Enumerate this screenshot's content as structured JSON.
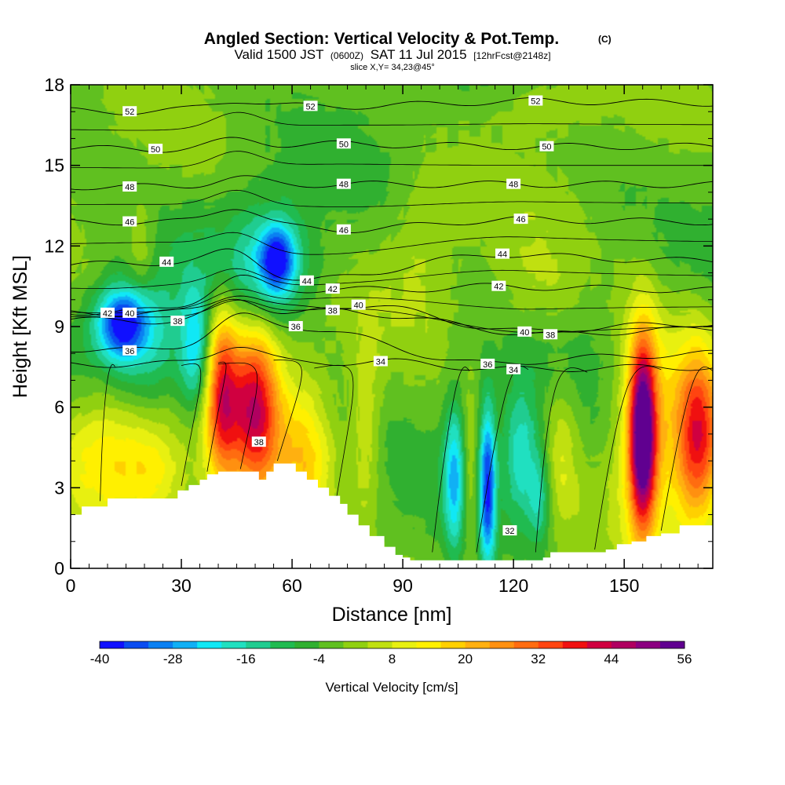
{
  "chart_data": {
    "type": "heatmap",
    "title": {
      "main": "Angled Section: Vertical Velocity & Pot.Temp.",
      "main_suffix": "(C)",
      "sub_a": "Valid 1500 JST",
      "sub_b": "(0600Z)",
      "sub_c": "SAT 11 Jul 2015",
      "sub_d": "[12hrFcst@2148z]",
      "slice": "slice X,Y= 34,23@45°"
    },
    "xlabel": "Distance [nm]",
    "ylabel": "Height [Kft MSL]",
    "xlim": [
      0,
      174
    ],
    "ylim": [
      0,
      18
    ],
    "x_ticks": [
      "0",
      "30",
      "60",
      "90",
      "120",
      "150"
    ],
    "x_tick_values": [
      0,
      30,
      60,
      90,
      120,
      150
    ],
    "y_ticks": [
      "0",
      "3",
      "6",
      "9",
      "12",
      "15",
      "18"
    ],
    "y_tick_values": [
      0,
      3,
      6,
      9,
      12,
      15,
      18
    ],
    "colorbar": {
      "label": "Vertical Velocity [cm/s]",
      "min": -40,
      "max": 56,
      "step": 4,
      "tick_labels": [
        "-40",
        "-28",
        "-16",
        "-4",
        "8",
        "20",
        "32",
        "44",
        "56"
      ],
      "tick_values": [
        -40,
        -28,
        -16,
        -4,
        8,
        20,
        32,
        44,
        56
      ],
      "colors": [
        "#1010ff",
        "#0a4cf0",
        "#0a80f2",
        "#10b0f5",
        "#10e8f5",
        "#20e0c0",
        "#20cc90",
        "#20bb50",
        "#30b030",
        "#60c020",
        "#90d010",
        "#c0e010",
        "#e8f010",
        "#fff000",
        "#ffd000",
        "#ffb010",
        "#ff9010",
        "#ff6c10",
        "#ff4410",
        "#f01010",
        "#d00040",
        "#b00060",
        "#8c0080",
        "#600090"
      ]
    },
    "vertical_velocity_field": {
      "units": "cm/s",
      "background": -2,
      "features": [
        {
          "name": "lower-left updraft",
          "x": 10,
          "y": 4.4,
          "dx": 10,
          "dy": 1.8,
          "value": 18
        },
        {
          "name": "lower-left updraft tail",
          "x": 23,
          "y": 3.6,
          "dx": 6,
          "dy": 1.2,
          "value": 10
        },
        {
          "name": "left updraft core A",
          "x": 41,
          "y": 6.7,
          "dx": 3.2,
          "dy": 2.4,
          "value": 34
        },
        {
          "name": "left updraft core B",
          "x": 50,
          "y": 6.2,
          "dx": 4.2,
          "dy": 2.2,
          "value": 32
        },
        {
          "name": "left updraft column",
          "x": 52,
          "y": 5.4,
          "dx": 10,
          "dy": 3.2,
          "value": 12
        },
        {
          "name": "updraft over ridge",
          "x": 64,
          "y": 3.8,
          "dx": 5,
          "dy": 1.8,
          "value": 14
        },
        {
          "name": "updraft slope",
          "x": 80,
          "y": 5.0,
          "dx": 3,
          "dy": 2.5,
          "value": 10
        },
        {
          "name": "upper left downdraft",
          "x": 14,
          "y": 9.1,
          "dx": 5,
          "dy": 0.9,
          "value": -32
        },
        {
          "name": "upper left downdraft halo",
          "x": 20,
          "y": 8.4,
          "dx": 9,
          "dy": 1.8,
          "value": -14
        },
        {
          "name": "upper downdraft band",
          "x": 56,
          "y": 11.5,
          "dx": 3.5,
          "dy": 0.9,
          "value": -30
        },
        {
          "name": "upper downdraft band halo",
          "x": 52,
          "y": 11.2,
          "dx": 10,
          "dy": 1.8,
          "value": -16
        },
        {
          "name": "mid downdraft",
          "x": 34,
          "y": 8.0,
          "dx": 3,
          "dy": 1.6,
          "value": -20
        },
        {
          "name": "upper updraft",
          "x": 19,
          "y": 11.8,
          "dx": 3,
          "dy": 1.4,
          "value": 8
        },
        {
          "name": "upper updraft right",
          "x": 126,
          "y": 10.5,
          "dx": 8,
          "dy": 1.4,
          "value": 6
        },
        {
          "name": "top right updraft",
          "x": 128,
          "y": 17.2,
          "dx": 10,
          "dy": 0.9,
          "value": 6
        },
        {
          "name": "low downdraft 1",
          "x": 104,
          "y": 3.4,
          "dx": 2,
          "dy": 2.0,
          "value": -22
        },
        {
          "name": "low downdraft 2",
          "x": 113,
          "y": 3.0,
          "dx": 1.6,
          "dy": 2.2,
          "value": -34
        },
        {
          "name": "low downdraft 3",
          "x": 122,
          "y": 4.2,
          "dx": 3.5,
          "dy": 1.8,
          "value": -18
        },
        {
          "name": "low downdraft 3b",
          "x": 127,
          "y": 2.6,
          "dx": 2.2,
          "dy": 1.2,
          "value": -14
        },
        {
          "name": "low updraft 1",
          "x": 108,
          "y": 3.5,
          "dx": 1.6,
          "dy": 2.0,
          "value": 8
        },
        {
          "name": "low updraft 2",
          "x": 133,
          "y": 4.6,
          "dx": 3,
          "dy": 2.0,
          "value": 8
        },
        {
          "name": "right updraft core",
          "x": 155,
          "y": 5.0,
          "dx": 2.5,
          "dy": 2.4,
          "value": 52
        },
        {
          "name": "right updraft halo",
          "x": 155,
          "y": 5.2,
          "dx": 5,
          "dy": 3.2,
          "value": 18
        },
        {
          "name": "far right updraft",
          "x": 170,
          "y": 4.8,
          "dx": 4,
          "dy": 2.2,
          "value": 28
        },
        {
          "name": "far right updraft halo",
          "x": 168,
          "y": 4.8,
          "dx": 7,
          "dy": 3.0,
          "value": 14
        },
        {
          "name": "mid level updraft",
          "x": 95,
          "y": 12.0,
          "dx": 7,
          "dy": 2.2,
          "value": 6
        }
      ]
    },
    "terrain": {
      "units": "Kft MSL",
      "x": [
        0,
        3,
        7,
        10,
        24,
        29,
        32,
        35,
        37,
        40,
        43,
        50,
        51,
        53,
        55,
        58,
        61,
        64,
        67,
        70,
        73,
        75,
        78,
        81,
        85,
        88,
        90,
        92,
        95,
        100,
        105,
        110,
        115,
        120,
        125,
        128,
        130,
        134,
        142,
        145,
        148,
        152,
        156,
        160,
        165,
        174
      ],
      "y": [
        2.0,
        2.3,
        2.3,
        2.6,
        2.6,
        2.9,
        3.1,
        3.3,
        3.5,
        3.6,
        3.6,
        3.6,
        3.3,
        3.6,
        3.9,
        3.9,
        3.6,
        3.3,
        3.0,
        2.7,
        2.4,
        2.0,
        1.6,
        1.2,
        0.8,
        0.5,
        0.4,
        0.3,
        0.3,
        0.3,
        0.3,
        0.3,
        0.3,
        0.3,
        0.3,
        0.4,
        0.6,
        0.6,
        0.6,
        0.7,
        0.9,
        1.0,
        1.2,
        1.3,
        1.6,
        1.6
      ]
    },
    "potential_temperature_contours": {
      "units": "C",
      "levels": [
        32,
        34,
        36,
        38,
        40,
        42,
        44,
        46,
        48,
        50,
        52
      ],
      "labels": [
        {
          "text": "52",
          "x": 16,
          "y": 17.0
        },
        {
          "text": "52",
          "x": 65,
          "y": 17.2
        },
        {
          "text": "52",
          "x": 126,
          "y": 17.4
        },
        {
          "text": "50",
          "x": 23,
          "y": 15.6
        },
        {
          "text": "50",
          "x": 74,
          "y": 15.8
        },
        {
          "text": "50",
          "x": 129,
          "y": 15.7
        },
        {
          "text": "48",
          "x": 16,
          "y": 14.2
        },
        {
          "text": "48",
          "x": 74,
          "y": 14.3
        },
        {
          "text": "48",
          "x": 120,
          "y": 14.3
        },
        {
          "text": "46",
          "x": 16,
          "y": 12.9
        },
        {
          "text": "46",
          "x": 74,
          "y": 12.6
        },
        {
          "text": "46",
          "x": 122,
          "y": 13.0
        },
        {
          "text": "44",
          "x": 26,
          "y": 11.4
        },
        {
          "text": "44",
          "x": 64,
          "y": 10.7
        },
        {
          "text": "44",
          "x": 117,
          "y": 11.7
        },
        {
          "text": "42",
          "x": 10,
          "y": 9.5
        },
        {
          "text": "42",
          "x": 71,
          "y": 10.4
        },
        {
          "text": "42",
          "x": 116,
          "y": 10.5
        },
        {
          "text": "40",
          "x": 16,
          "y": 9.5
        },
        {
          "text": "40",
          "x": 78,
          "y": 9.8
        },
        {
          "text": "40",
          "x": 123,
          "y": 8.8
        },
        {
          "text": "38",
          "x": 29,
          "y": 9.2
        },
        {
          "text": "38",
          "x": 71,
          "y": 9.6
        },
        {
          "text": "38",
          "x": 130,
          "y": 8.7
        },
        {
          "text": "38",
          "x": 51,
          "y": 4.7
        },
        {
          "text": "36",
          "x": 16,
          "y": 8.1
        },
        {
          "text": "36",
          "x": 61,
          "y": 9.0
        },
        {
          "text": "36",
          "x": 113,
          "y": 7.6
        },
        {
          "text": "34",
          "x": 84,
          "y": 7.7
        },
        {
          "text": "34",
          "x": 120,
          "y": 7.4
        },
        {
          "text": "32",
          "x": 119,
          "y": 1.4
        }
      ]
    }
  }
}
